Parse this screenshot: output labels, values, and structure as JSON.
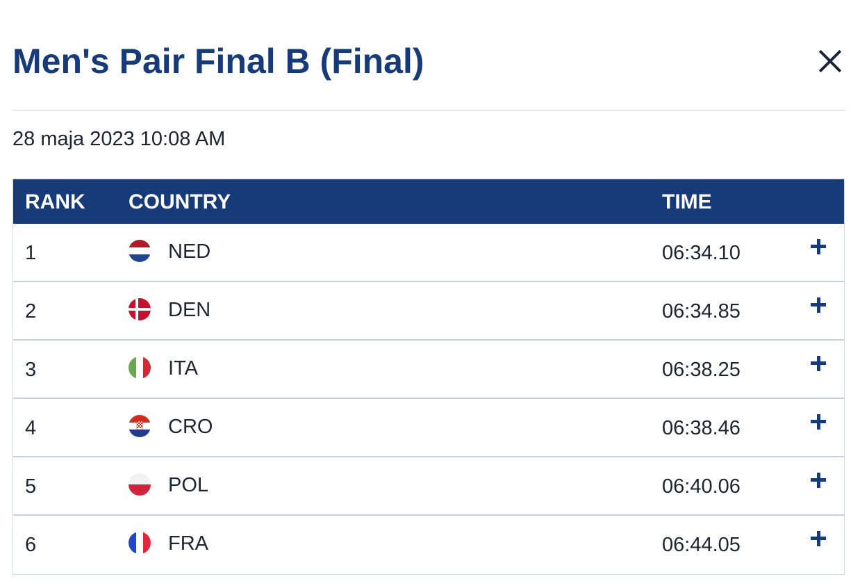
{
  "title": "Men's Pair Final B (Final)",
  "datetime": "28 maja 2023 10:08 AM",
  "table": {
    "headers": {
      "rank": "RANK",
      "country": "COUNTRY",
      "time": "TIME"
    },
    "rows": [
      {
        "rank": "1",
        "code": "NED",
        "time": "06:34.10",
        "flag": "netherlands-flag-icon"
      },
      {
        "rank": "2",
        "code": "DEN",
        "time": "06:34.85",
        "flag": "denmark-flag-icon"
      },
      {
        "rank": "3",
        "code": "ITA",
        "time": "06:38.25",
        "flag": "italy-flag-icon"
      },
      {
        "rank": "4",
        "code": "CRO",
        "time": "06:38.46",
        "flag": "croatia-flag-icon"
      },
      {
        "rank": "5",
        "code": "POL",
        "time": "06:40.06",
        "flag": "poland-flag-icon"
      },
      {
        "rank": "6",
        "code": "FRA",
        "time": "06:44.05",
        "flag": "france-flag-icon"
      }
    ]
  },
  "colors": {
    "accent": "#173a78",
    "header_bg": "#173a78",
    "text": "#1e2433"
  }
}
